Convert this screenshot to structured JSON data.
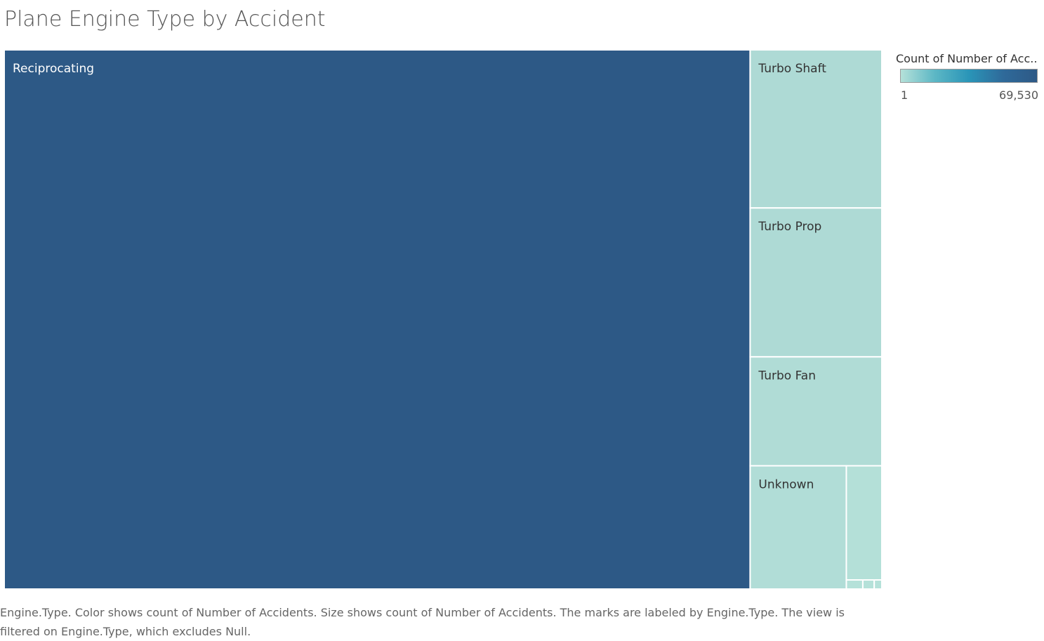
{
  "title": "Plane Engine Type by Accident",
  "colors": {
    "high": "#2d5986",
    "low": "#b5e1d9",
    "border": "#ffffff",
    "label_dark_bg": "#ffffff",
    "label_light_bg": "#333333"
  },
  "legend": {
    "title": "Count of Number of Acc..",
    "min_label": "1",
    "max_label": "69,530"
  },
  "caption": "Engine.Type.  Color shows count of Number of Accidents.  Size shows count of Number of Accidents.  The marks are labeled by Engine.Type. The view is filtered on Engine.Type, which excludes Null.",
  "chart_data": {
    "type": "treemap",
    "title": "Plane Engine Type by Accident",
    "measure": "Count of Number of Accidents",
    "color_range": [
      1,
      69530
    ],
    "items": [
      {
        "label": "Reciprocating",
        "value": 69530,
        "show_label": true
      },
      {
        "label": "Turbo Shaft",
        "value": 3600,
        "show_label": true
      },
      {
        "label": "Turbo Prop",
        "value": 3390,
        "show_label": true
      },
      {
        "label": "Turbo Fan",
        "value": 2480,
        "show_label": true
      },
      {
        "label": "Unknown",
        "value": 2050,
        "show_label": true
      },
      {
        "label": "",
        "value": 700,
        "show_label": false
      },
      {
        "label": "",
        "value": 26,
        "show_label": false
      },
      {
        "label": "",
        "value": 18,
        "show_label": false
      },
      {
        "label": "",
        "value": 12,
        "show_label": false
      }
    ]
  }
}
